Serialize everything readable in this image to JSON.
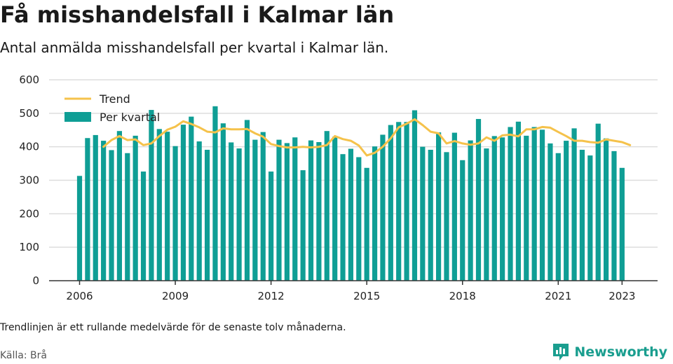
{
  "header": {
    "title": "Få misshandelsfall i Kalmar län",
    "subtitle": "Antal anmälda misshandelsfall per kvartal i Kalmar län."
  },
  "footer": {
    "note": "Trendlinjen är ett rullande medelvärde för de senaste tolv månaderna.",
    "source": "Källa: Brå",
    "brand": "Newsworthy"
  },
  "colors": {
    "bar": "#0f9e95",
    "trend": "#f5c24b",
    "grid": "#dddddd",
    "axis": "#333333",
    "brand": "#1a9e8f"
  },
  "chart_data": {
    "type": "bar",
    "title": "Få misshandelsfall i Kalmar län",
    "subtitle": "Antal anmälda misshandelsfall per kvartal i Kalmar län.",
    "x_start_year": 2006,
    "x_ticks": [
      "2006",
      "2009",
      "2012",
      "2015",
      "2018",
      "2021",
      "2023"
    ],
    "x_tick_years": [
      2006,
      2009,
      2012,
      2015,
      2018,
      2021,
      2023
    ],
    "y_ticks": [
      0,
      100,
      200,
      300,
      400,
      500,
      600
    ],
    "ylim": [
      0,
      600
    ],
    "grid": true,
    "legend_position": "top-left",
    "series": [
      {
        "name": "Per kvartal",
        "type": "bar",
        "values": [
          313,
          426,
          435,
          418,
          390,
          447,
          381,
          433,
          326,
          510,
          453,
          445,
          402,
          466,
          490,
          416,
          391,
          521,
          470,
          413,
          395,
          480,
          421,
          444,
          326,
          421,
          411,
          428,
          330,
          419,
          414,
          447,
          430,
          378,
          394,
          369,
          337,
          401,
          436,
          465,
          474,
          474,
          509,
          400,
          391,
          443,
          384,
          442,
          360,
          419,
          483,
          395,
          432,
          428,
          459,
          475,
          433,
          459,
          451,
          410,
          381,
          418,
          455,
          391,
          374,
          469,
          425,
          387,
          337
        ]
      },
      {
        "name": "Trend",
        "type": "line",
        "start_index": 3,
        "values": [
          400,
          420,
          432,
          420,
          422,
          405,
          410,
          432,
          451,
          460,
          476,
          468,
          458,
          445,
          443,
          455,
          452,
          452,
          453,
          440,
          430,
          408,
          402,
          398,
          398,
          400,
          398,
          400,
          405,
          432,
          423,
          418,
          404,
          374,
          382,
          400,
          425,
          458,
          469,
          482,
          465,
          445,
          440,
          410,
          417,
          410,
          406,
          410,
          428,
          418,
          434,
          436,
          431,
          452,
          452,
          459,
          457,
          444,
          432,
          418,
          418,
          414,
          412,
          422,
          418,
          414,
          405
        ]
      }
    ]
  }
}
